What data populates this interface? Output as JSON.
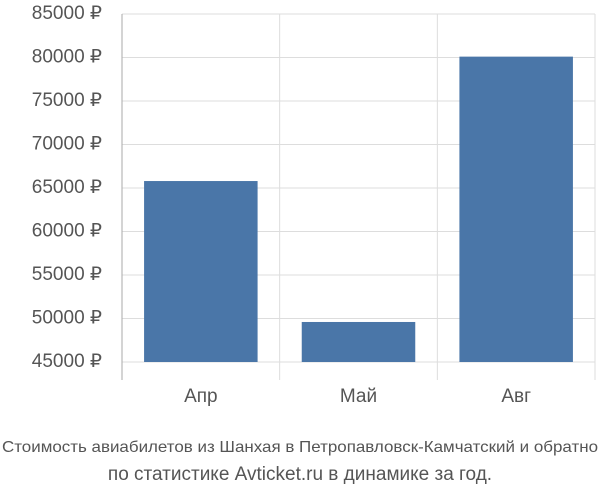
{
  "chart_data": {
    "type": "bar",
    "title": "Стоимость авиабилетов из Шанхая в Петропавловск-Камчатский и обратно",
    "subtitle": "по статистике Avticket.ru в динамике за год.",
    "categories": [
      "Апр",
      "Май",
      "Авг"
    ],
    "values": [
      65800,
      49600,
      80100
    ],
    "color": "#4a76a8",
    "ylim": [
      45000,
      85000
    ],
    "yticks": [
      {
        "value": 45000,
        "label": "45000 ₽"
      },
      {
        "value": 50000,
        "label": "50000 ₽"
      },
      {
        "value": 55000,
        "label": "55000 ₽"
      },
      {
        "value": 60000,
        "label": "60000 ₽"
      },
      {
        "value": 65000,
        "label": "65000 ₽"
      },
      {
        "value": 70000,
        "label": "70000 ₽"
      },
      {
        "value": 75000,
        "label": "75000 ₽"
      },
      {
        "value": 80000,
        "label": "80000 ₽"
      },
      {
        "value": 85000,
        "label": "85000 ₽"
      }
    ],
    "grid": true
  }
}
